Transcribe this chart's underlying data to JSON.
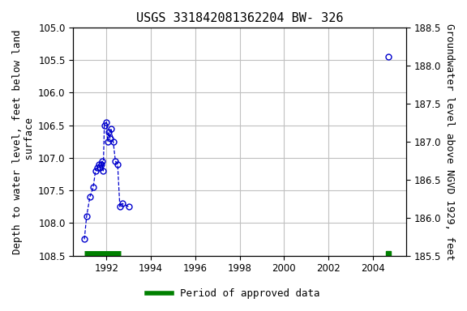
{
  "title": "USGS 331842081362204 BW- 326",
  "ylabel_left": "Depth to water level, feet below land\n surface",
  "ylabel_right": "Groundwater level above NGVD 1929, feet",
  "ylim_left": [
    108.5,
    105.0
  ],
  "ylim_right": [
    185.5,
    188.5
  ],
  "yticks_left": [
    105.0,
    105.5,
    106.0,
    106.5,
    107.0,
    107.5,
    108.0,
    108.5
  ],
  "yticks_right": [
    185.5,
    186.0,
    186.5,
    187.0,
    187.5,
    188.0,
    188.5
  ],
  "xlim": [
    1990.5,
    2005.5
  ],
  "xticks": [
    1992,
    1994,
    1996,
    1998,
    2000,
    2002,
    2004
  ],
  "cluster_x": [
    1991.0,
    1991.1,
    1991.25,
    1991.4,
    1991.5,
    1991.6,
    1991.65,
    1991.7,
    1991.75,
    1991.8,
    1991.85,
    1991.9,
    1992.0,
    1992.05,
    1992.1,
    1992.15,
    1992.2,
    1992.3,
    1992.4,
    1992.5,
    1992.6,
    1992.7,
    1993.0
  ],
  "cluster_y": [
    108.25,
    107.9,
    107.6,
    107.45,
    107.2,
    107.15,
    107.1,
    107.15,
    107.1,
    107.05,
    107.2,
    106.5,
    106.45,
    106.75,
    106.6,
    106.7,
    106.55,
    106.75,
    107.05,
    107.1,
    107.75,
    107.7,
    107.75
  ],
  "isolated_x": [
    2004.7
  ],
  "isolated_y": [
    105.45
  ],
  "approved_bar_start_x": 1991.0,
  "approved_bar_end_x": 1992.65,
  "approved_bar_y": 108.47,
  "approved_dot_x": 2004.7,
  "approved_dot_y": 108.47,
  "dot_color": "#0000cd",
  "line_color": "#0000cd",
  "approved_color": "#008000",
  "bg_color": "#ffffff",
  "grid_color": "#c0c0c0",
  "title_fontsize": 11,
  "axis_label_fontsize": 9,
  "tick_fontsize": 8.5,
  "legend_fontsize": 9
}
